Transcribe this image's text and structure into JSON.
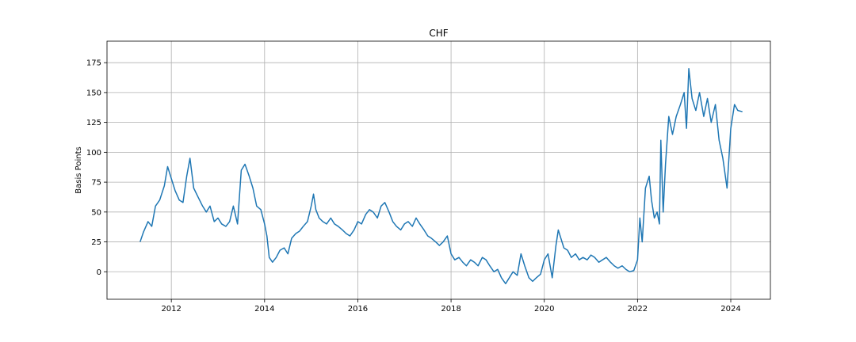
{
  "chart_data": {
    "type": "line",
    "title": "CHF",
    "xlabel": "",
    "ylabel": "Basis Points",
    "xlim": [
      2010.62,
      2024.85
    ],
    "ylim": [
      -23,
      193
    ],
    "x_ticks": [
      2012,
      2014,
      2016,
      2018,
      2020,
      2022,
      2024
    ],
    "y_ticks": [
      0,
      25,
      50,
      75,
      100,
      125,
      150,
      175
    ],
    "grid": true,
    "legend": "none",
    "colors": {
      "series": "#1f77b4",
      "grid": "#b0b0b0",
      "axes": "#000000"
    },
    "series": [
      {
        "x": [
          2011.33,
          2011.4,
          2011.5,
          2011.58,
          2011.66,
          2011.75,
          2011.85,
          2011.92,
          2012.0,
          2012.08,
          2012.17,
          2012.25,
          2012.33,
          2012.4,
          2012.48,
          2012.58,
          2012.67,
          2012.75,
          2012.83,
          2012.92,
          2013.0,
          2013.08,
          2013.17,
          2013.25,
          2013.33,
          2013.42,
          2013.5,
          2013.58,
          2013.67,
          2013.75,
          2013.83,
          2013.92,
          2014.0,
          2014.05,
          2014.1,
          2014.17,
          2014.25,
          2014.33,
          2014.42,
          2014.5,
          2014.58,
          2014.67,
          2014.75,
          2014.83,
          2014.92,
          2015.0,
          2015.05,
          2015.1,
          2015.17,
          2015.25,
          2015.33,
          2015.42,
          2015.5,
          2015.58,
          2015.67,
          2015.75,
          2015.83,
          2015.92,
          2016.0,
          2016.08,
          2016.17,
          2016.25,
          2016.33,
          2016.42,
          2016.5,
          2016.58,
          2016.67,
          2016.75,
          2016.83,
          2016.92,
          2017.0,
          2017.08,
          2017.17,
          2017.25,
          2017.33,
          2017.42,
          2017.5,
          2017.58,
          2017.67,
          2017.75,
          2017.83,
          2017.92,
          2018.0,
          2018.08,
          2018.17,
          2018.25,
          2018.33,
          2018.42,
          2018.5,
          2018.58,
          2018.67,
          2018.75,
          2018.83,
          2018.92,
          2019.0,
          2019.08,
          2019.17,
          2019.25,
          2019.33,
          2019.42,
          2019.5,
          2019.58,
          2019.67,
          2019.75,
          2019.83,
          2019.92,
          2020.0,
          2020.08,
          2020.17,
          2020.25,
          2020.3,
          2020.42,
          2020.5,
          2020.58,
          2020.67,
          2020.75,
          2020.83,
          2020.92,
          2021.0,
          2021.08,
          2021.17,
          2021.25,
          2021.33,
          2021.42,
          2021.5,
          2021.58,
          2021.67,
          2021.75,
          2021.83,
          2021.92,
          2022.0,
          2022.05,
          2022.1,
          2022.17,
          2022.25,
          2022.3,
          2022.36,
          2022.42,
          2022.47,
          2022.5,
          2022.55,
          2022.6,
          2022.67,
          2022.75,
          2022.83,
          2022.92,
          2023.0,
          2023.05,
          2023.1,
          2023.17,
          2023.25,
          2023.33,
          2023.42,
          2023.5,
          2023.58,
          2023.67,
          2023.75,
          2023.83,
          2023.92,
          2024.0,
          2024.08,
          2024.15,
          2024.25
        ],
        "y": [
          25,
          33,
          42,
          38,
          55,
          60,
          72,
          88,
          78,
          68,
          60,
          58,
          80,
          95,
          70,
          62,
          55,
          50,
          55,
          42,
          45,
          40,
          38,
          42,
          55,
          40,
          85,
          90,
          80,
          70,
          55,
          52,
          40,
          30,
          12,
          8,
          12,
          18,
          20,
          15,
          28,
          32,
          34,
          38,
          42,
          55,
          65,
          52,
          45,
          42,
          40,
          45,
          40,
          38,
          35,
          32,
          30,
          35,
          42,
          40,
          48,
          52,
          50,
          45,
          55,
          58,
          50,
          42,
          38,
          35,
          40,
          42,
          38,
          45,
          40,
          35,
          30,
          28,
          25,
          22,
          25,
          30,
          15,
          10,
          12,
          8,
          5,
          10,
          8,
          5,
          12,
          10,
          5,
          0,
          2,
          -5,
          -10,
          -5,
          0,
          -3,
          15,
          5,
          -5,
          -8,
          -5,
          -2,
          10,
          15,
          -5,
          22,
          35,
          20,
          18,
          12,
          15,
          10,
          12,
          10,
          14,
          12,
          8,
          10,
          12,
          8,
          5,
          3,
          5,
          2,
          0,
          1,
          10,
          45,
          25,
          70,
          80,
          60,
          45,
          50,
          40,
          110,
          50,
          90,
          130,
          115,
          130,
          140,
          150,
          120,
          170,
          145,
          135,
          150,
          130,
          145,
          125,
          140,
          110,
          95,
          70,
          120,
          140,
          135,
          134
        ]
      }
    ]
  }
}
